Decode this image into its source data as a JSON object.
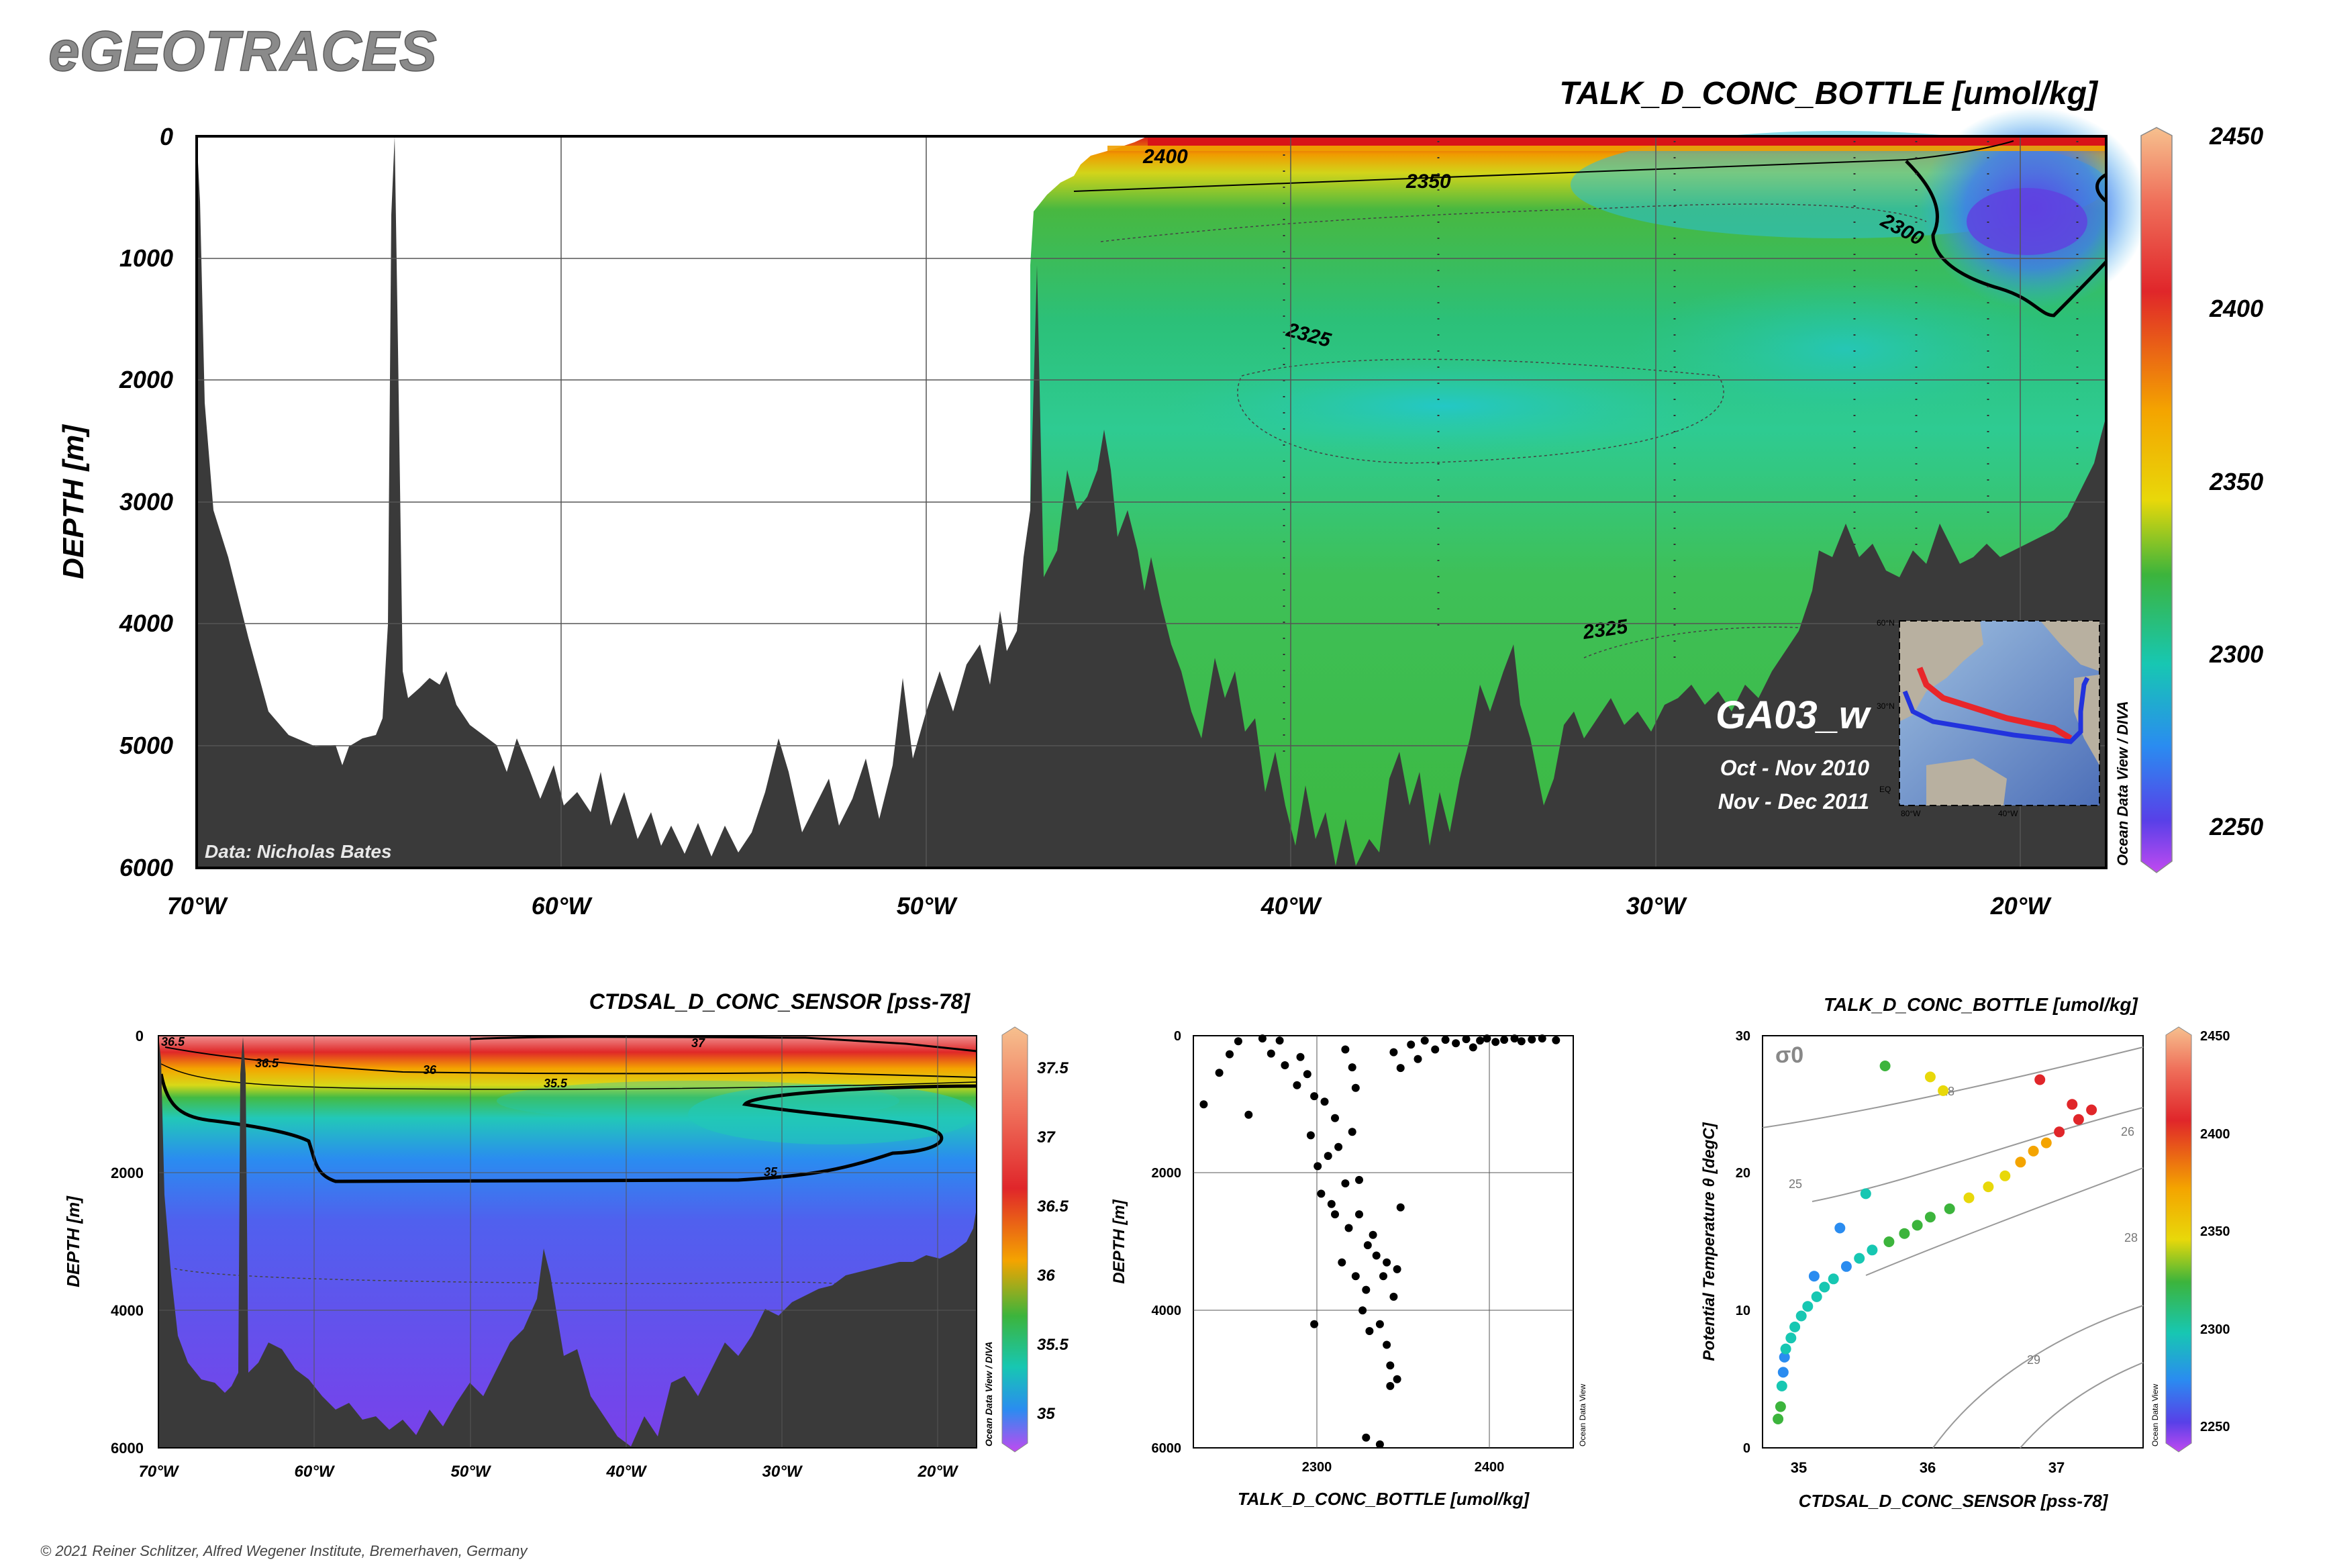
{
  "app_title": "eGEOTRACES",
  "copyright": "© 2021 Reiner Schlitzer, Alfred Wegener Institute, Bremerhaven, Germany",
  "colors": {
    "land": "#3a3a3a",
    "accent_red": "#e8262a",
    "accent_blue": "#2233dd"
  },
  "main_section": {
    "title": "TALK_D_CONC_BOTTLE [umol/kg]",
    "ylabel": "DEPTH [m]",
    "y_ticks": [
      "0",
      "1000",
      "2000",
      "3000",
      "4000",
      "5000",
      "6000"
    ],
    "x_ticks": [
      "70°W",
      "60°W",
      "50°W",
      "40°W",
      "30°W",
      "20°W"
    ],
    "credit": "Data: Nicholas Bates",
    "cruise": "GA03_w",
    "dates": [
      "Oct - Nov 2010",
      "Nov - Dec 2011"
    ],
    "odv_label": "Ocean Data View / DIVA",
    "contour_labels": [
      "2400",
      "2350",
      "2300",
      "2325",
      "2325"
    ],
    "colorbar_ticks": [
      "2450",
      "2400",
      "2350",
      "2300",
      "2250"
    ],
    "inset": {
      "lat_labels": [
        "60°N",
        "30°N",
        "EQ"
      ],
      "lon_labels": [
        "80°W",
        "40°W"
      ]
    }
  },
  "sal_section": {
    "title": "CTDSAL_D_CONC_SENSOR [pss-78]",
    "ylabel": "DEPTH [m]",
    "y_ticks": [
      "0",
      "2000",
      "4000",
      "6000"
    ],
    "x_ticks": [
      "70°W",
      "60°W",
      "50°W",
      "40°W",
      "30°W",
      "20°W"
    ],
    "odv_label": "Ocean Data View / DIVA",
    "contour_labels": [
      "36.5",
      "37",
      "36.5",
      "36",
      "35.5",
      "35"
    ],
    "colorbar_ticks": [
      "37.5",
      "37",
      "36.5",
      "36",
      "35.5",
      "35"
    ]
  },
  "profile_plot": {
    "xlabel": "TALK_D_CONC_BOTTLE [umol/kg]",
    "ylabel": "DEPTH [m]",
    "y_ticks": [
      "0",
      "2000",
      "4000",
      "6000"
    ],
    "x_ticks": [
      "2300",
      "2400"
    ],
    "odv_label": "Ocean Data View"
  },
  "ts_plot": {
    "title": "TALK_D_CONC_BOTTLE [umol/kg]",
    "xlabel": "CTDSAL_D_CONC_SENSOR [pss-78]",
    "ylabel": "Potential Temperature θ [degC]",
    "sigma_label": "σ0",
    "y_ticks": [
      "0",
      "10",
      "20",
      "30"
    ],
    "x_ticks": [
      "35",
      "36",
      "37"
    ],
    "isopycnal_labels": [
      "25",
      "26",
      "28",
      "29",
      "28"
    ],
    "colorbar_ticks": [
      "2450",
      "2400",
      "2350",
      "2300",
      "2250"
    ],
    "odv_label": "Ocean Data View"
  },
  "chart_data": [
    {
      "type": "heatmap",
      "title": "TALK_D_CONC_BOTTLE [umol/kg]",
      "xlabel": "",
      "ylabel": "DEPTH [m]",
      "xlim": [
        -70,
        -18
      ],
      "ylim": [
        6000,
        0
      ],
      "colorbar_range": [
        2240,
        2450
      ],
      "contour_levels": [
        2300,
        2325,
        2350,
        2400
      ],
      "grid": true
    },
    {
      "type": "heatmap",
      "title": "CTDSAL_D_CONC_SENSOR [pss-78]",
      "xlabel": "",
      "ylabel": "DEPTH [m]",
      "xlim": [
        -70,
        -18
      ],
      "ylim": [
        6000,
        0
      ],
      "colorbar_range": [
        34.8,
        37.8
      ],
      "contour_levels": [
        35,
        35.5,
        36,
        36.5,
        37
      ],
      "grid": true
    },
    {
      "type": "scatter",
      "xlabel": "TALK_D_CONC_BOTTLE [umol/kg]",
      "ylabel": "DEPTH [m]",
      "xlim": [
        2230,
        2450
      ],
      "ylim": [
        6000,
        0
      ],
      "grid": true,
      "points": [
        [
          2236,
          1000
        ],
        [
          2245,
          540
        ],
        [
          2251,
          270
        ],
        [
          2256,
          80
        ],
        [
          2262,
          1150
        ],
        [
          2270,
          40
        ],
        [
          2275,
          260
        ],
        [
          2280,
          70
        ],
        [
          2283,
          430
        ],
        [
          2290,
          720
        ],
        [
          2292,
          310
        ],
        [
          2296,
          560
        ],
        [
          2298,
          1450
        ],
        [
          2300,
          880
        ],
        [
          2302,
          1900
        ],
        [
          2304,
          2300
        ],
        [
          2306,
          960
        ],
        [
          2308,
          1750
        ],
        [
          2310,
          2450
        ],
        [
          2312,
          1200
        ],
        [
          2314,
          1620
        ],
        [
          2316,
          3300
        ],
        [
          2318,
          2150
        ],
        [
          2320,
          2800
        ],
        [
          2322,
          1400
        ],
        [
          2324,
          3500
        ],
        [
          2326,
          2600
        ],
        [
          2328,
          4000
        ],
        [
          2330,
          3700
        ],
        [
          2331,
          3050
        ],
        [
          2332,
          4300
        ],
        [
          2334,
          2900
        ],
        [
          2336,
          3200
        ],
        [
          2338,
          4200
        ],
        [
          2340,
          3500
        ],
        [
          2342,
          4500
        ],
        [
          2344,
          5100
        ],
        [
          2346,
          3800
        ],
        [
          2348,
          3400
        ],
        [
          2350,
          2500
        ],
        [
          2330,
          5850
        ],
        [
          2338,
          5950
        ],
        [
          2318,
          200
        ],
        [
          2322,
          460
        ],
        [
          2324,
          760
        ],
        [
          2346,
          240
        ],
        [
          2350,
          470
        ],
        [
          2356,
          130
        ],
        [
          2360,
          340
        ],
        [
          2364,
          70
        ],
        [
          2370,
          200
        ],
        [
          2376,
          60
        ],
        [
          2382,
          110
        ],
        [
          2388,
          50
        ],
        [
          2392,
          170
        ],
        [
          2396,
          70
        ],
        [
          2400,
          40
        ],
        [
          2405,
          90
        ],
        [
          2410,
          60
        ],
        [
          2416,
          40
        ],
        [
          2420,
          80
        ],
        [
          2426,
          55
        ],
        [
          2432,
          40
        ],
        [
          2440,
          65
        ],
        [
          2300,
          4200
        ],
        [
          2312,
          2600
        ],
        [
          2326,
          2100
        ],
        [
          2342,
          3300
        ],
        [
          2348,
          5000
        ],
        [
          2344,
          4800
        ]
      ]
    },
    {
      "type": "scatter",
      "xlabel": "CTDSAL_D_CONC_SENSOR [pss-78]",
      "ylabel": "Potential Temperature θ [degC]",
      "xlim": [
        34.8,
        37.75
      ],
      "ylim": [
        0,
        30
      ],
      "colorbar_range": [
        2240,
        2450
      ],
      "grid": false,
      "points": [
        [
          34.92,
          2.1,
          2325
        ],
        [
          34.94,
          3.0,
          2330
        ],
        [
          34.95,
          4.5,
          2310
        ],
        [
          34.96,
          5.5,
          2295
        ],
        [
          34.97,
          6.6,
          2290
        ],
        [
          34.98,
          7.2,
          2300
        ],
        [
          35.02,
          8.0,
          2310
        ],
        [
          35.05,
          8.8,
          2305
        ],
        [
          35.1,
          9.6,
          2300
        ],
        [
          35.15,
          10.3,
          2320
        ],
        [
          35.22,
          11.0,
          2310
        ],
        [
          35.28,
          11.7,
          2300
        ],
        [
          35.35,
          12.3,
          2305
        ],
        [
          35.45,
          13.2,
          2290
        ],
        [
          35.55,
          13.8,
          2300
        ],
        [
          35.65,
          14.4,
          2320
        ],
        [
          35.78,
          15.0,
          2335
        ],
        [
          35.9,
          15.6,
          2340
        ],
        [
          36.0,
          16.2,
          2345
        ],
        [
          36.1,
          16.8,
          2345
        ],
        [
          36.25,
          17.4,
          2350
        ],
        [
          36.4,
          18.2,
          2360
        ],
        [
          36.55,
          19.0,
          2370
        ],
        [
          36.68,
          19.8,
          2380
        ],
        [
          36.8,
          20.8,
          2390
        ],
        [
          36.9,
          21.6,
          2400
        ],
        [
          37.0,
          22.2,
          2405
        ],
        [
          37.1,
          23.0,
          2410
        ],
        [
          37.25,
          23.9,
          2420
        ],
        [
          37.35,
          24.6,
          2425
        ],
        [
          35.75,
          27.8,
          2330
        ],
        [
          36.1,
          27.0,
          2360
        ],
        [
          36.2,
          26.0,
          2380
        ],
        [
          36.95,
          26.8,
          2410
        ],
        [
          37.2,
          25.0,
          2415
        ],
        [
          35.6,
          18.5,
          2300
        ],
        [
          35.4,
          16.0,
          2295
        ],
        [
          35.2,
          12.5,
          2290
        ]
      ]
    }
  ]
}
